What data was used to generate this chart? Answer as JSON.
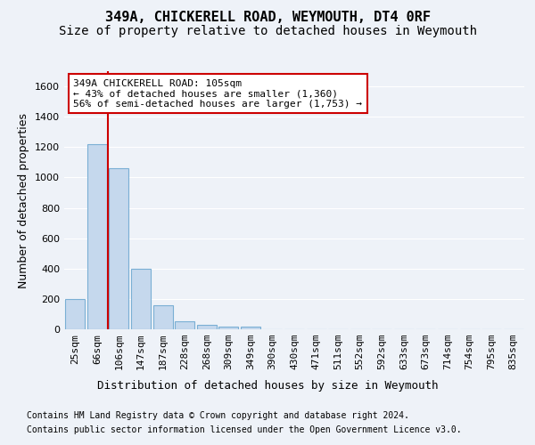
{
  "title": "349A, CHICKERELL ROAD, WEYMOUTH, DT4 0RF",
  "subtitle": "Size of property relative to detached houses in Weymouth",
  "xlabel": "Distribution of detached houses by size in Weymouth",
  "ylabel": "Number of detached properties",
  "bin_labels": [
    "25sqm",
    "66sqm",
    "106sqm",
    "147sqm",
    "187sqm",
    "228sqm",
    "268sqm",
    "309sqm",
    "349sqm",
    "390sqm",
    "430sqm",
    "471sqm",
    "511sqm",
    "552sqm",
    "592sqm",
    "633sqm",
    "673sqm",
    "714sqm",
    "754sqm",
    "795sqm",
    "835sqm"
  ],
  "bar_values": [
    200,
    1220,
    1060,
    400,
    160,
    50,
    30,
    20,
    20,
    0,
    0,
    0,
    0,
    0,
    0,
    0,
    0,
    0,
    0,
    0,
    0
  ],
  "bar_color": "#c5d8ed",
  "bar_edge_color": "#7aafd4",
  "property_line_bin": 2,
  "annotation_line1": "349A CHICKERELL ROAD: 105sqm",
  "annotation_line2": "← 43% of detached houses are smaller (1,360)",
  "annotation_line3": "56% of semi-detached houses are larger (1,753) →",
  "annotation_box_color": "#ffffff",
  "annotation_border_color": "#cc0000",
  "property_line_color": "#cc0000",
  "ylim": [
    0,
    1700
  ],
  "yticks": [
    0,
    200,
    400,
    600,
    800,
    1000,
    1200,
    1400,
    1600
  ],
  "footer_line1": "Contains HM Land Registry data © Crown copyright and database right 2024.",
  "footer_line2": "Contains public sector information licensed under the Open Government Licence v3.0.",
  "background_color": "#eef2f8",
  "grid_color": "#d0d8e8",
  "title_fontsize": 11,
  "subtitle_fontsize": 10,
  "axis_label_fontsize": 9,
  "tick_fontsize": 8,
  "footer_fontsize": 7
}
